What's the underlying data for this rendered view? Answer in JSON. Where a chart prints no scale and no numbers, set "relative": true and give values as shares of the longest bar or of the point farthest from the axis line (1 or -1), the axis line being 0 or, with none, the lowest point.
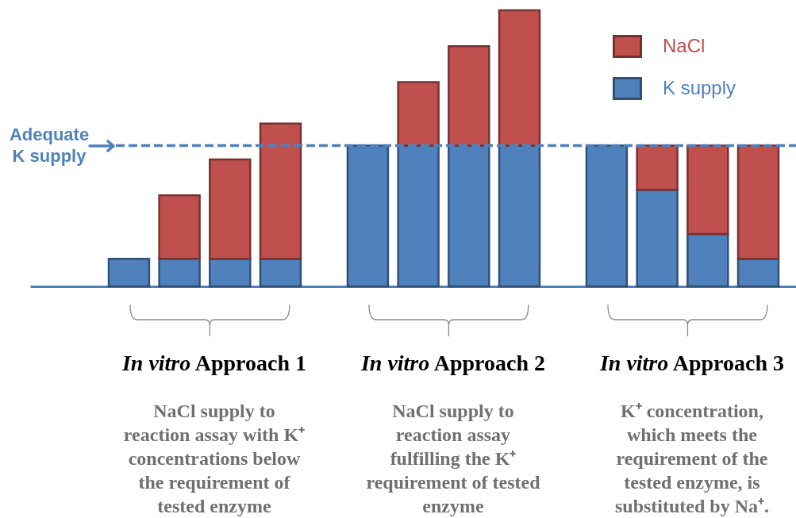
{
  "chart_data": {
    "type": "bar",
    "relative": true,
    "stacked": true,
    "categories": [
      null,
      null,
      null,
      null,
      null,
      null,
      null,
      null,
      null,
      null,
      null,
      null
    ],
    "series": [
      {
        "name": "K supply",
        "color": "#4f81bd",
        "values": [
          0.1,
          0.1,
          0.1,
          0.1,
          0.51,
          0.51,
          0.51,
          0.51,
          0.51,
          0.35,
          0.19,
          0.1
        ]
      },
      {
        "name": "NaCl",
        "color": "#c0504d",
        "values": [
          null,
          0.23,
          0.36,
          0.49,
          null,
          0.23,
          0.36,
          0.49,
          null,
          0.16,
          0.32,
          0.41
        ]
      }
    ],
    "ref_lines": [
      {
        "axis": "y",
        "value": 0.51,
        "label": "Adequate\nK supply",
        "color": "#4f81bd",
        "line_style": "dashed"
      }
    ],
    "legend": "top right",
    "annotations": [
      "In vitro Approach 1",
      "NaCl supply to\nreaction assay with K⁺\nconcentrations below\nthe requirement of\ntested enzyme",
      "In vitro Approach 2",
      "NaCl supply to\nreaction assay\nfulfilling the K⁺\nrequirement of tested\nenzyme",
      "In vitro Approach 3",
      "K⁺ concentration,\nwhich meets the\nrequirement of the\ntested enzyme, is\nsubstituted by Na⁺."
    ]
  }
}
